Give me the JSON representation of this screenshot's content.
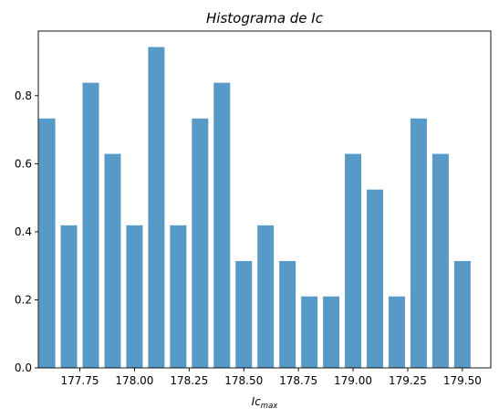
{
  "chart_data": {
    "type": "bar",
    "title": "Histograma de Ic",
    "xlabel_base": "Ic",
    "xlabel_sub": "max",
    "ylabel": "",
    "x": [
      177.6,
      177.7,
      177.8,
      177.9,
      178.0,
      178.1,
      178.2,
      178.3,
      178.4,
      178.5,
      178.6,
      178.7,
      178.8,
      178.9,
      179.0,
      179.1,
      179.2,
      179.3,
      179.4,
      179.5
    ],
    "values": [
      0.733,
      0.419,
      0.838,
      0.629,
      0.419,
      0.943,
      0.419,
      0.733,
      0.838,
      0.314,
      0.419,
      0.314,
      0.21,
      0.21,
      0.629,
      0.524,
      0.21,
      0.733,
      0.629,
      0.314
    ],
    "bin_width": 0.1,
    "bar_width": 0.075,
    "xlim": [
      177.56,
      179.63
    ],
    "ylim": [
      0,
      0.99
    ],
    "xticks": [
      177.75,
      178.0,
      178.25,
      178.5,
      178.75,
      179.0,
      179.25,
      179.5
    ],
    "xtick_labels": [
      "177.75",
      "178.00",
      "178.25",
      "178.50",
      "178.75",
      "179.00",
      "179.25",
      "179.50"
    ],
    "yticks": [
      0.0,
      0.2,
      0.4,
      0.6,
      0.8
    ],
    "ytick_labels": [
      "0.0",
      "0.2",
      "0.4",
      "0.6",
      "0.8"
    ],
    "bar_color": "#5799c7",
    "grid": false,
    "legend": "none"
  }
}
